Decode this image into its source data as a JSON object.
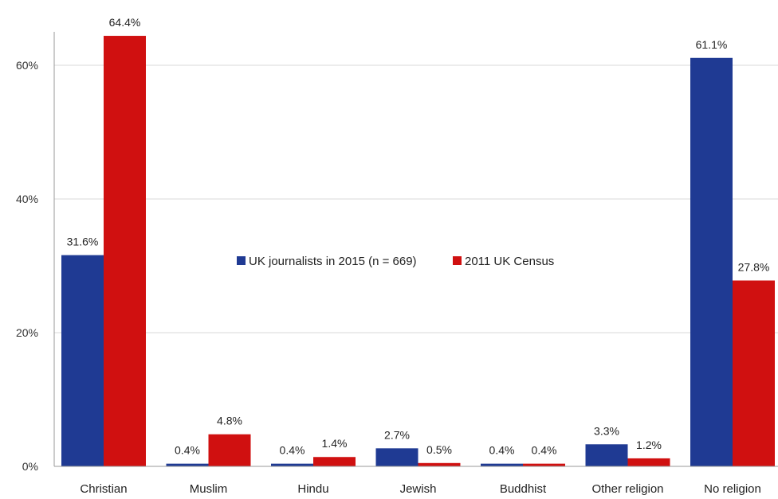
{
  "chart_data": {
    "type": "bar",
    "title": "",
    "xlabel": "",
    "ylabel": "",
    "ylim": [
      0,
      65
    ],
    "y_ticks": [
      0,
      20,
      40,
      60
    ],
    "y_tick_labels": [
      "0%",
      "20%",
      "40%",
      "60%"
    ],
    "grid": true,
    "legend_position": "center",
    "categories": [
      "Christian",
      "Muslim",
      "Hindu",
      "Jewish",
      "Buddhist",
      "Other religion",
      "No religion"
    ],
    "series": [
      {
        "name": "UK journalists in 2015 (n = 669)",
        "color": "#1f3a93",
        "values": [
          31.6,
          0.4,
          0.4,
          2.7,
          0.4,
          3.3,
          61.1
        ],
        "labels": [
          "31.6%",
          "0.4%",
          "0.4%",
          "2.7%",
          "0.4%",
          "3.3%",
          "61.1%"
        ]
      },
      {
        "name": "2011 UK Census",
        "color": "#d01010",
        "values": [
          64.4,
          4.8,
          1.4,
          0.5,
          0.4,
          1.2,
          27.8
        ],
        "labels": [
          "64.4%",
          "4.8%",
          "1.4%",
          "0.5%",
          "0.4%",
          "1.2%",
          "27.8%"
        ]
      }
    ]
  }
}
